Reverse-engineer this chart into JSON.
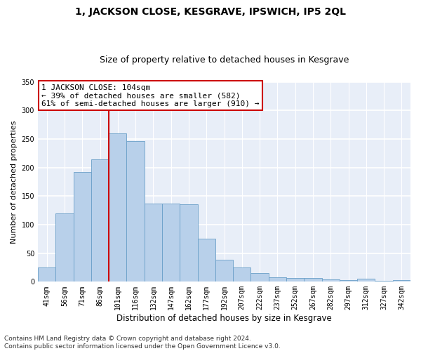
{
  "title": "1, JACKSON CLOSE, KESGRAVE, IPSWICH, IP5 2QL",
  "subtitle": "Size of property relative to detached houses in Kesgrave",
  "xlabel": "Distribution of detached houses by size in Kesgrave",
  "ylabel": "Number of detached properties",
  "categories": [
    "41sqm",
    "56sqm",
    "71sqm",
    "86sqm",
    "101sqm",
    "116sqm",
    "132sqm",
    "147sqm",
    "162sqm",
    "177sqm",
    "192sqm",
    "207sqm",
    "222sqm",
    "237sqm",
    "252sqm",
    "267sqm",
    "282sqm",
    "297sqm",
    "312sqm",
    "327sqm",
    "342sqm"
  ],
  "values": [
    25,
    120,
    192,
    214,
    260,
    246,
    137,
    137,
    136,
    76,
    39,
    25,
    15,
    8,
    7,
    7,
    4,
    3,
    5,
    2,
    3
  ],
  "bar_color": "#b8d0ea",
  "bar_edge_color": "#6a9fc8",
  "annotation_line1": "1 JACKSON CLOSE: 104sqm",
  "annotation_line2": "← 39% of detached houses are smaller (582)",
  "annotation_line3": "61% of semi-detached houses are larger (910) →",
  "vline_color": "#cc0000",
  "vline_index": 4,
  "ylim": [
    0,
    350
  ],
  "yticks": [
    0,
    50,
    100,
    150,
    200,
    250,
    300,
    350
  ],
  "background_color": "#e8eef8",
  "footer_line1": "Contains HM Land Registry data © Crown copyright and database right 2024.",
  "footer_line2": "Contains public sector information licensed under the Open Government Licence v3.0.",
  "title_fontsize": 10,
  "subtitle_fontsize": 9,
  "xlabel_fontsize": 8.5,
  "ylabel_fontsize": 8,
  "tick_fontsize": 7,
  "annotation_fontsize": 8,
  "footer_fontsize": 6.5
}
